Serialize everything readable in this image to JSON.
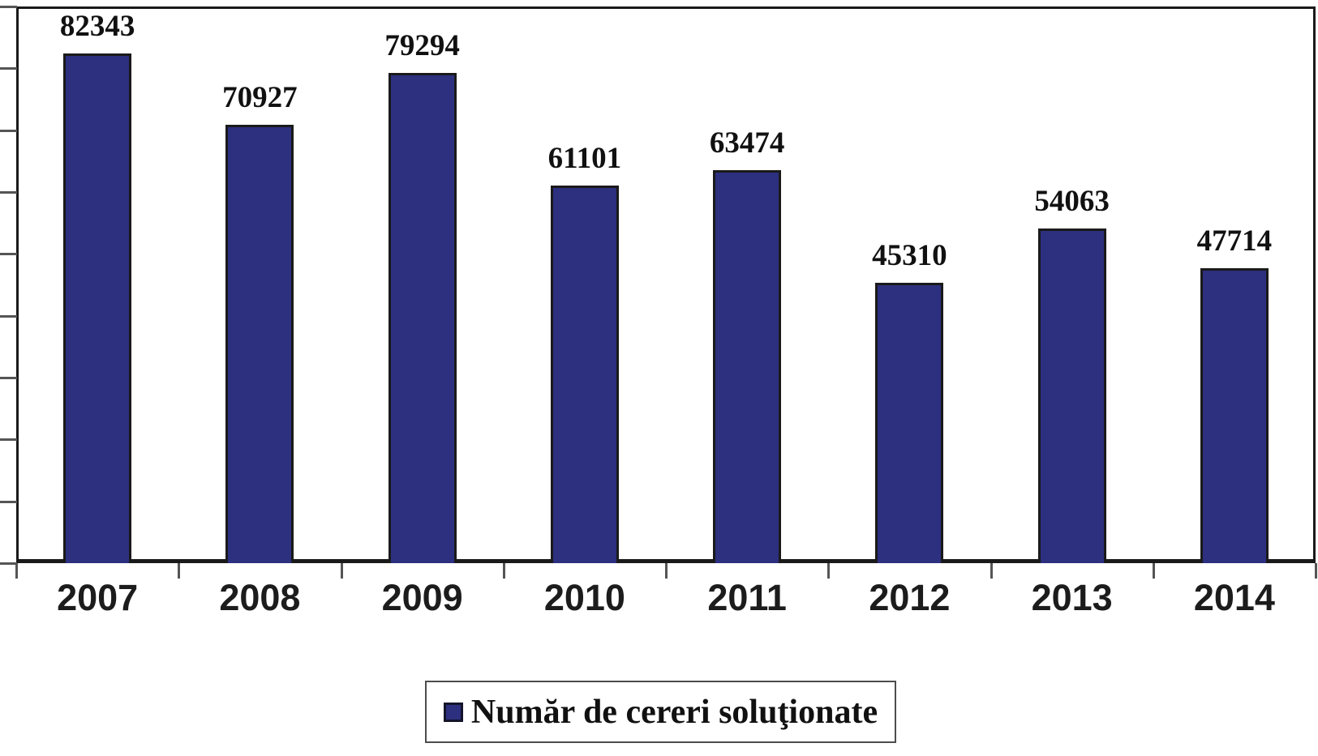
{
  "chart_data": {
    "type": "bar",
    "title": "",
    "categories": [
      "2007",
      "2008",
      "2009",
      "2010",
      "2011",
      "2012",
      "2013",
      "2014"
    ],
    "series": [
      {
        "name": "Număr de cereri soluţionate",
        "values": [
          82343,
          70927,
          79294,
          61101,
          63474,
          45310,
          54063,
          47714
        ]
      }
    ],
    "bar_value_labels": [
      "82343",
      "70927",
      "79294",
      "61101",
      "63474",
      "45310",
      "54063",
      "47714"
    ],
    "xlabel": "",
    "ylabel": "",
    "ylim": [
      0,
      90000
    ],
    "y_tick_interval": 10000,
    "y_tick_labels_visible": false,
    "x_tick_labels_visible": true,
    "grid": false,
    "legend_position": "bottom-center",
    "bar_labels_visible": true
  },
  "legend": {
    "label": "Număr de cereri soluţionate"
  },
  "colors": {
    "bar_fill": "#2d2f7f",
    "bar_border": "#1a1a1a",
    "axis": "#1a1a1a",
    "tick": "#555555",
    "legend_border": "#4d4d4d",
    "label_text": "#111111"
  }
}
